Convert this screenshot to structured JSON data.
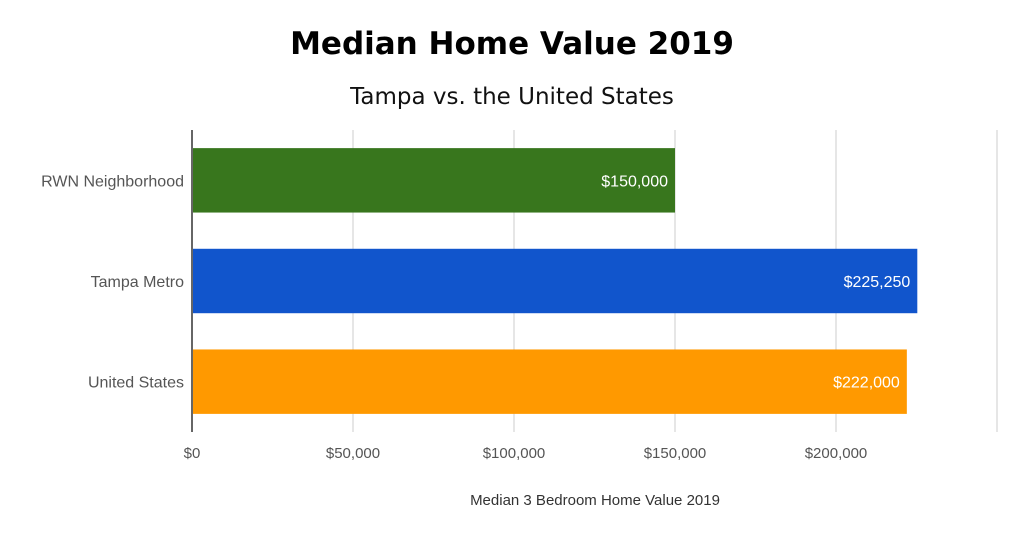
{
  "chart_data": {
    "type": "bar",
    "orientation": "horizontal",
    "title": "Median Home Value 2019",
    "subtitle": "Tampa vs. the United States",
    "xlabel": "Median 3 Bedroom Home Value 2019",
    "ylabel": "",
    "xlim": [
      0,
      250000
    ],
    "xticks": [
      0,
      50000,
      100000,
      150000,
      200000
    ],
    "xtick_labels": [
      "$0",
      "$50,000",
      "$100,000",
      "$150,000",
      "$200,000"
    ],
    "grid": true,
    "legend": "none",
    "bars": [
      {
        "category": "RWN Neighborhood",
        "value": 150000,
        "label": "$150,000",
        "color": "#38761d"
      },
      {
        "category": "Tampa Metro",
        "value": 225250,
        "label": "$225,250",
        "color": "#1155cc"
      },
      {
        "category": "United States",
        "value": 222000,
        "label": "$222,000",
        "color": "#ff9900"
      }
    ]
  }
}
